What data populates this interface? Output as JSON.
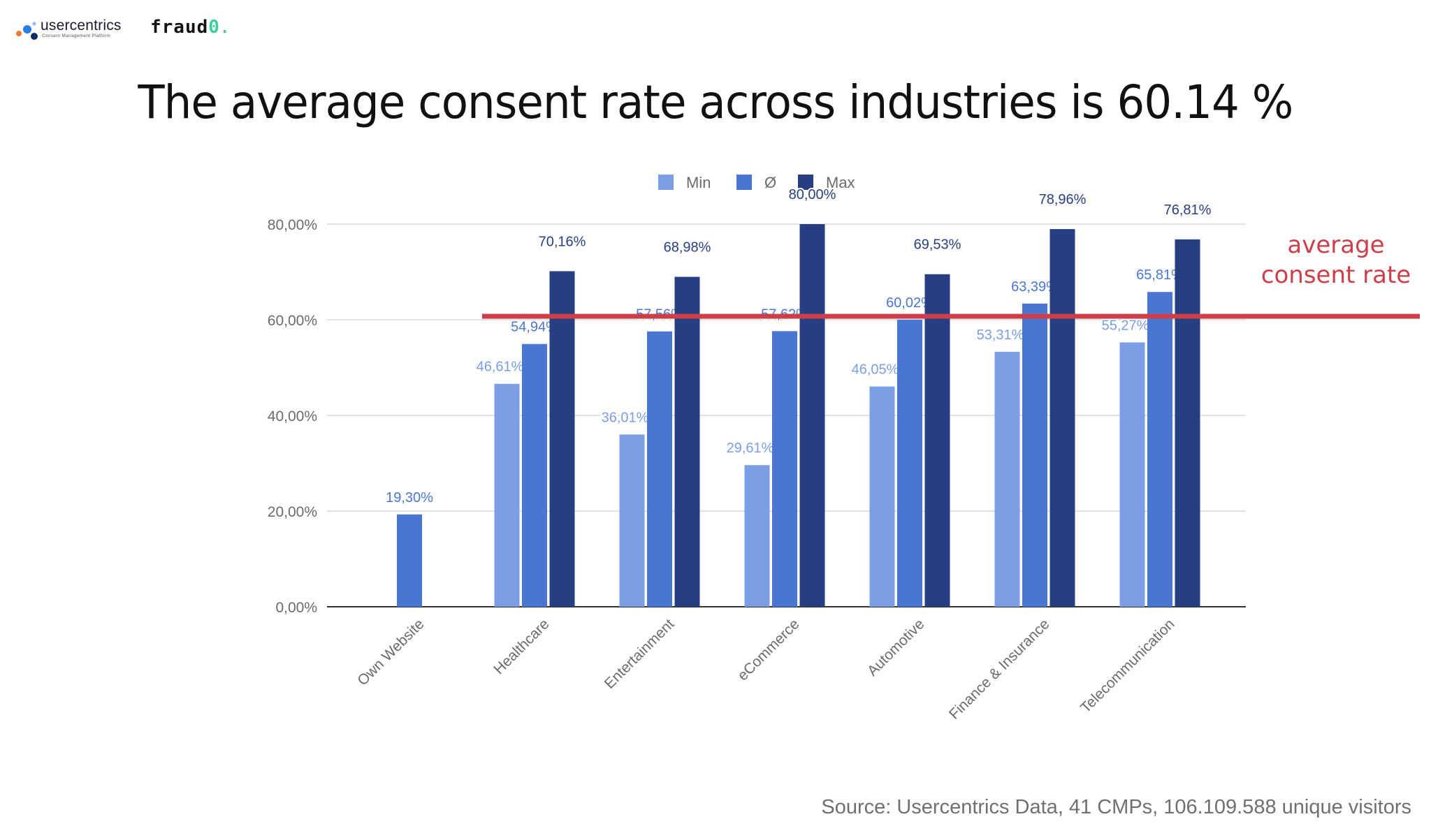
{
  "brand": {
    "usercentrics_name": "usercentrics",
    "usercentrics_tagline": "Consent Management Platform",
    "fraud_text": "fraud",
    "fraud_zero": "0",
    "fraud_dot": "."
  },
  "headline": "The average consent rate across industries is 60.14 %",
  "source": "Source: Usercentrics Data, 41 CMPs, 106.109.588 unique visitors",
  "colors": {
    "min": "#7b9ee4",
    "avg": "#4a76d3",
    "max": "#273f82",
    "average_line": "#cc3f49",
    "gridline": "#d9d9d9",
    "axis": "#333333"
  },
  "chart_data": {
    "type": "bar",
    "ylim": [
      0,
      80
    ],
    "yticks": [
      0,
      20,
      40,
      60,
      80
    ],
    "ytick_labels": [
      "0,00%",
      "20,00%",
      "40,00%",
      "60,00%",
      "80,00%"
    ],
    "grid": true,
    "legend_position": "top-center",
    "categories": [
      "Own Website",
      "Healthcare",
      "Entertainment",
      "eCommerce",
      "Automotive",
      "Finance & Insurance",
      "Telecommunication"
    ],
    "series": [
      {
        "name": "Min",
        "values": [
          null,
          46.61,
          36.01,
          29.61,
          46.05,
          53.31,
          55.27
        ],
        "labels": [
          null,
          "46,61%",
          "36,01%",
          "29,61%",
          "46,05%",
          "53,31%",
          "55,27%"
        ]
      },
      {
        "name": "Ø",
        "values": [
          19.3,
          54.94,
          57.56,
          57.62,
          60.02,
          63.39,
          65.81
        ],
        "labels": [
          "19,30%",
          "54,94%",
          "57,56%",
          "57,62%",
          "60,02%",
          "63,39%",
          "65,81%"
        ]
      },
      {
        "name": "Max",
        "values": [
          null,
          70.16,
          68.98,
          80.0,
          69.53,
          78.96,
          76.81
        ],
        "labels": [
          null,
          "70,16%",
          "68,98%",
          "80,00%",
          "69,53%",
          "78,96%",
          "76,81%"
        ]
      }
    ],
    "reference_line": {
      "value": 60.14,
      "label_lines": [
        "average",
        "consent rate"
      ]
    }
  }
}
